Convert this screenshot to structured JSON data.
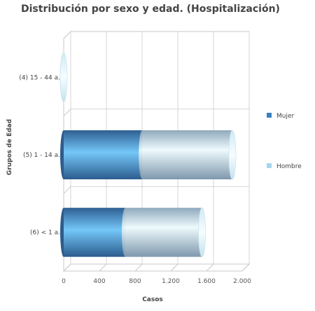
{
  "chart_data": {
    "type": "bar",
    "orientation": "horizontal",
    "stacked": true,
    "three_d": true,
    "title": "Distribución por sexo y edad. (Hospitalización)",
    "xlabel": "Casos",
    "ylabel": "Grupos de Edad",
    "categories": [
      "(4) 15 - 44 a.",
      "(5) 1 - 14 a.",
      "(6) < 1 a."
    ],
    "series": [
      {
        "name": "Mujer",
        "values": [
          0,
          880,
          690
        ]
      },
      {
        "name": "Hombre",
        "values": [
          0,
          1010,
          860
        ]
      }
    ],
    "xlim": [
      0,
      2000
    ],
    "xticks": [
      "0",
      "400",
      "800",
      "1.200",
      "1.600",
      "2.000"
    ],
    "xtick_values": [
      0,
      400,
      800,
      1200,
      1600,
      2000
    ],
    "grid": true,
    "legend_position": "right",
    "colors": {
      "Mujer": "#3a7fc1",
      "Hombre": "#a6d6ee"
    }
  }
}
